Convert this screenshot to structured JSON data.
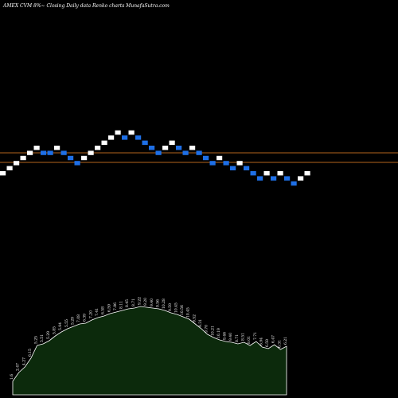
{
  "header": {
    "title": "AMEX  CVM  8%~  Closing Daily data  Renko  charts MunafaSutra.com"
  },
  "colors": {
    "background": "#000000",
    "brick_up": "#ffffff",
    "brick_down": "#1e6fe6",
    "ref_line": "#b5651d",
    "area_fill": "#0c2a0c",
    "area_stroke": "#ffffff"
  },
  "chart_data": [
    {
      "type": "renko",
      "brick_levels": [
        0,
        1,
        2,
        3,
        4,
        5,
        4,
        4,
        5,
        4,
        3,
        2,
        3,
        4,
        5,
        6,
        7,
        8,
        7,
        8,
        7,
        6,
        5,
        4,
        5,
        6,
        5,
        4,
        5,
        4,
        3,
        2,
        3,
        2,
        1,
        2,
        1,
        0,
        -1,
        0,
        -1,
        0,
        -1,
        -2,
        -1,
        0
      ],
      "reference_lines": [
        "upper",
        "lower"
      ]
    },
    {
      "type": "area",
      "values": [
        1.7,
        2.8,
        3.5,
        4.6,
        6.2,
        6.4,
        6.8,
        7.4,
        7.9,
        8.3,
        8.6,
        8.9,
        9.0,
        9.4,
        9.7,
        9.9,
        10.2,
        10.4,
        10.6,
        10.8,
        10.9,
        11.1,
        11.0,
        10.9,
        10.8,
        10.6,
        10.3,
        10.1,
        9.8,
        9.5,
        8.9,
        8.3,
        7.6,
        7.2,
        6.9,
        6.7,
        6.6,
        6.4,
        6.6,
        6.2,
        6.7,
        6.0,
        5.8,
        6.3,
        5.7,
        6.1
      ],
      "labels": [
        "1.6",
        "2.47",
        "4.27",
        "6.15",
        "5.25",
        "5.51",
        "5.29",
        "5.85",
        "5.94",
        "5.55",
        "5.29",
        "7.08",
        "6.39",
        "7.20",
        "7.41",
        "6.58",
        "6.59",
        "7.86",
        "8.11",
        "8.45",
        "8.71",
        "9.22",
        "9.20",
        "9.40",
        "9.56",
        "10.28",
        "9.59",
        "10.45",
        "10.56",
        "10.45",
        "9.52",
        "9.31",
        "9.70",
        "10.21",
        "10.19",
        "9.46",
        "9.40",
        "8.71",
        "8.51",
        "8.01",
        "7.71",
        "6.94",
        "6.59",
        "6.47",
        "6.31",
        "6.21"
      ]
    }
  ]
}
